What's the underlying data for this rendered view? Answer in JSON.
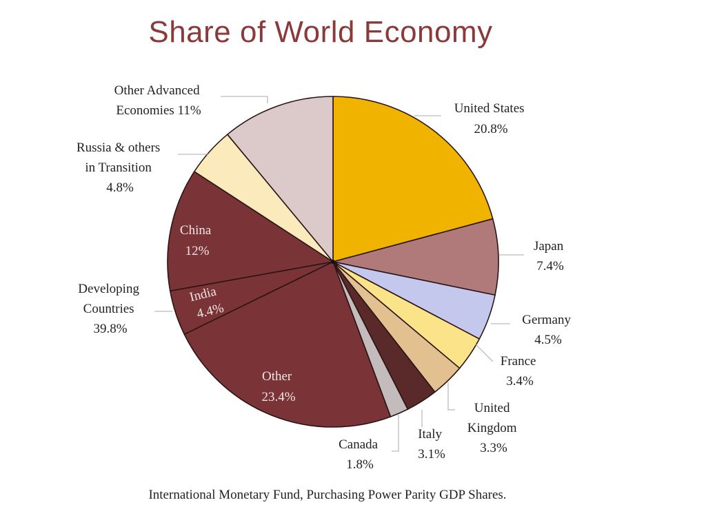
{
  "chart_data": {
    "type": "pie",
    "title": "Share of World Economy",
    "caption": "International Monetary Fund, Purchasing Power Parity GDP Shares.",
    "slices": [
      {
        "id": "us",
        "label": "United States",
        "value_text": "20.8%",
        "value": 20.8,
        "color": "#f0b400"
      },
      {
        "id": "japan",
        "label": "Japan",
        "value_text": "7.4%",
        "value": 7.4,
        "color": "#b07a7a"
      },
      {
        "id": "germany",
        "label": "Germany",
        "value_text": "4.5%",
        "value": 4.5,
        "color": "#c3c8ec"
      },
      {
        "id": "france",
        "label": "France",
        "value_text": "3.4%",
        "value": 3.4,
        "color": "#fbe38a"
      },
      {
        "id": "uk",
        "label": "United Kingdom",
        "value_text": "3.3%",
        "value": 3.3,
        "color": "#e2c08f"
      },
      {
        "id": "italy",
        "label": "Italy",
        "value_text": "3.1%",
        "value": 3.1,
        "color": "#5a2a2a"
      },
      {
        "id": "canada",
        "label": "Canada",
        "value_text": "1.8%",
        "value": 1.8,
        "color": "#c4bcbc"
      },
      {
        "id": "other",
        "label": "Other",
        "value_text": "23.4%",
        "value": 23.4,
        "color": "#7a3438"
      },
      {
        "id": "india",
        "label": "India",
        "value_text": "4.4%",
        "value": 4.4,
        "color": "#7a3438"
      },
      {
        "id": "china",
        "label": "China",
        "value_text": "12%",
        "value": 12,
        "color": "#7a3438"
      },
      {
        "id": "russia",
        "label": "Russia & others in Transition",
        "value_text": "4.8%",
        "value": 4.8,
        "color": "#fbeabc"
      },
      {
        "id": "advanced",
        "label": "Other Advanced Economies",
        "value_text": "11%",
        "value": 11,
        "color": "#dcc9c9"
      }
    ],
    "groups": [
      {
        "label": "Developing Countries",
        "value_text": "39.8%",
        "value": 39.8,
        "members": [
          "china",
          "india",
          "other"
        ]
      }
    ]
  }
}
